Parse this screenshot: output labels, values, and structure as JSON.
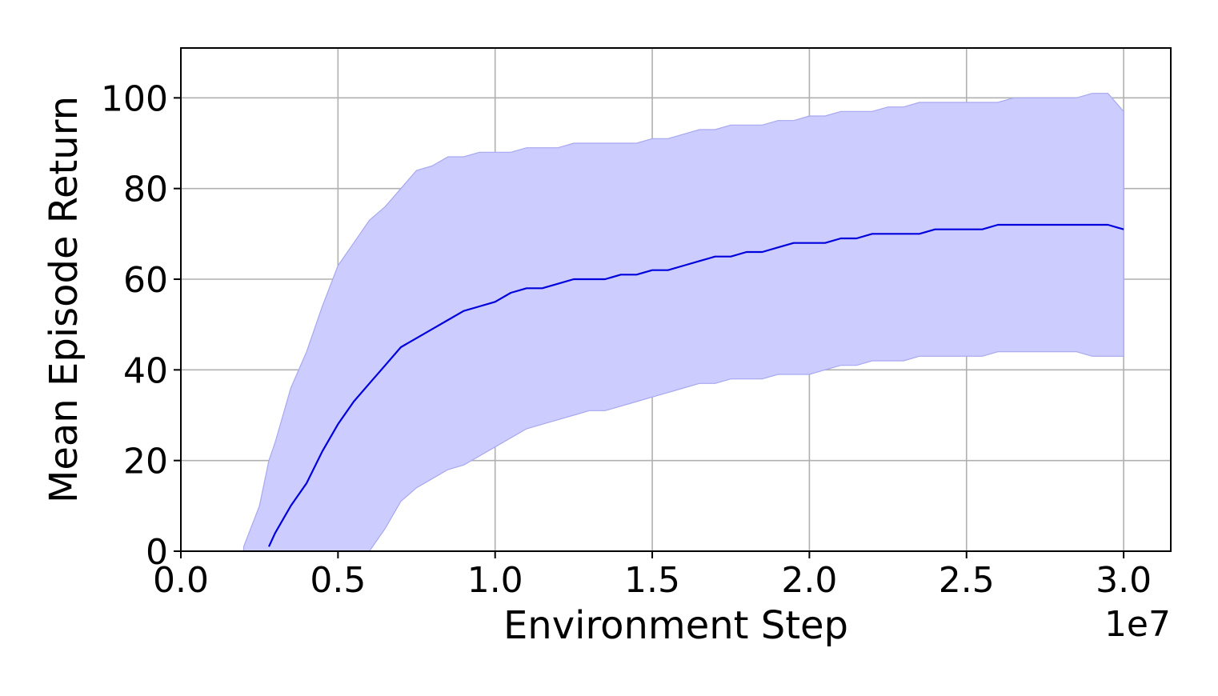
{
  "chart_data": {
    "type": "line",
    "xlabel": "Environment Step",
    "ylabel": "Mean Episode Return",
    "x_offset_label": "1e7",
    "xlim": [
      0,
      3.15
    ],
    "ylim": [
      0,
      111
    ],
    "x_ticks": [
      0,
      0.5,
      1.0,
      1.5,
      2.0,
      2.5,
      3.0
    ],
    "x_tick_labels": [
      "0.0",
      "0.5",
      "1.0",
      "1.5",
      "2.0",
      "2.5",
      "3.0"
    ],
    "y_ticks": [
      0,
      20,
      40,
      60,
      80,
      100
    ],
    "y_tick_labels": [
      "0",
      "20",
      "40",
      "60",
      "80",
      "100"
    ],
    "grid": true,
    "colors": {
      "line": "#0000dd",
      "band": "#ccccff",
      "band_edge": "#a8a8f0"
    },
    "series": [
      {
        "x": [
          0.2,
          0.25,
          0.28,
          0.3,
          0.35,
          0.4,
          0.45,
          0.5,
          0.55,
          0.6,
          0.65,
          0.7,
          0.75,
          0.8,
          0.85,
          0.9,
          0.95,
          1.0,
          1.05,
          1.1,
          1.15,
          1.2,
          1.25,
          1.3,
          1.35,
          1.4,
          1.45,
          1.5,
          1.55,
          1.6,
          1.65,
          1.7,
          1.75,
          1.8,
          1.85,
          1.9,
          1.95,
          2.0,
          2.05,
          2.1,
          2.15,
          2.2,
          2.25,
          2.3,
          2.35,
          2.4,
          2.45,
          2.5,
          2.55,
          2.6,
          2.65,
          2.7,
          2.75,
          2.8,
          2.85,
          2.9,
          2.95,
          3.0
        ],
        "mean": [
          null,
          null,
          1,
          4,
          10,
          15,
          22,
          28,
          33,
          37,
          41,
          45,
          47,
          49,
          51,
          53,
          54,
          55,
          57,
          58,
          58,
          59,
          60,
          60,
          60,
          61,
          61,
          62,
          62,
          63,
          64,
          65,
          65,
          66,
          66,
          67,
          68,
          68,
          68,
          69,
          69,
          70,
          70,
          70,
          70,
          71,
          71,
          71,
          71,
          72,
          72,
          72,
          72,
          72,
          72,
          72,
          72,
          71
        ],
        "upper": [
          1,
          10,
          20,
          24,
          36,
          44,
          54,
          63,
          68,
          73,
          76,
          80,
          84,
          85,
          87,
          87,
          88,
          88,
          88,
          89,
          89,
          89,
          90,
          90,
          90,
          90,
          90,
          91,
          91,
          92,
          93,
          93,
          94,
          94,
          94,
          95,
          95,
          96,
          96,
          97,
          97,
          97,
          98,
          98,
          99,
          99,
          99,
          99,
          99,
          99,
          100,
          100,
          100,
          100,
          100,
          101,
          101,
          97
        ],
        "lower": [
          null,
          null,
          null,
          null,
          null,
          null,
          null,
          null,
          null,
          0,
          5,
          11,
          14,
          16,
          18,
          19,
          21,
          23,
          25,
          27,
          28,
          29,
          30,
          31,
          31,
          32,
          33,
          34,
          35,
          36,
          37,
          37,
          38,
          38,
          38,
          39,
          39,
          39,
          40,
          41,
          41,
          42,
          42,
          42,
          43,
          43,
          43,
          43,
          43,
          44,
          44,
          44,
          44,
          44,
          44,
          43,
          43,
          43
        ]
      }
    ]
  }
}
